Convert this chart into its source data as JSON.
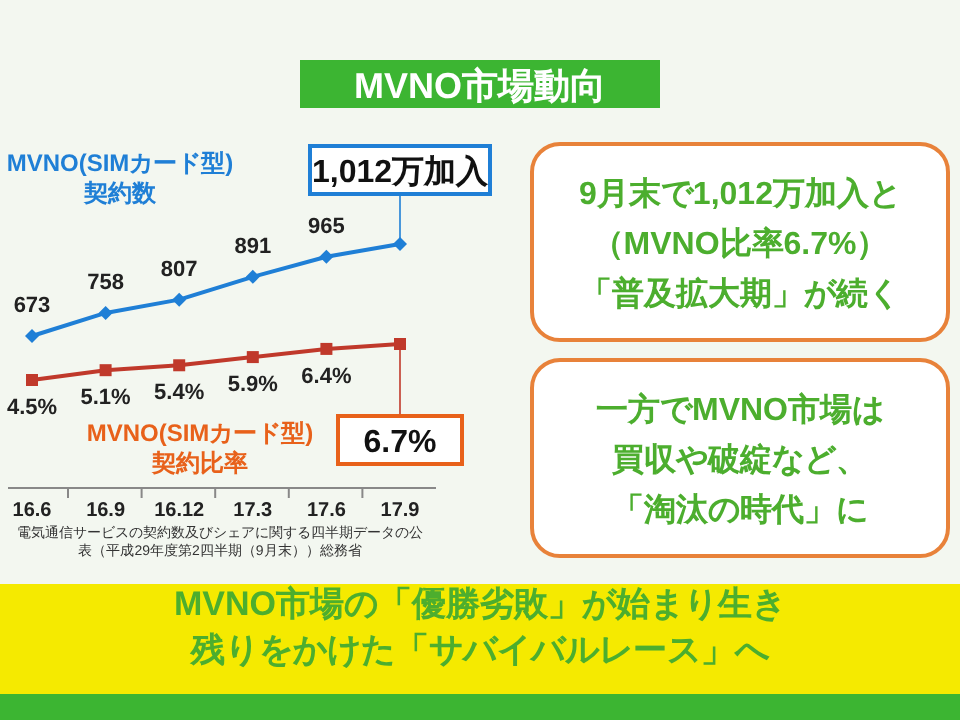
{
  "chart_data": [
    {
      "type": "line",
      "title": "MVNO市場動向",
      "categories": [
        "16.6",
        "16.9",
        "16.12",
        "17.3",
        "17.6",
        "17.9"
      ],
      "tick_labels": false,
      "legend": "top left",
      "marker": "diamond",
      "series": [
        {
          "name": "MVNO(SIMカード型)契約数",
          "color": "#1f7fd6",
          "values": [
            673,
            758,
            807,
            891,
            965,
            1012
          ],
          "value_labels": [
            "673",
            "758",
            "807",
            "891",
            "965",
            "1,012万加入"
          ]
        }
      ]
    },
    {
      "type": "line",
      "categories": [
        "16.6",
        "16.9",
        "16.12",
        "17.3",
        "17.6",
        "17.9"
      ],
      "legend": "bottom left",
      "marker": "square",
      "series": [
        {
          "name": "MVNO(SIMカード型)契約比率",
          "color": "#c0392b",
          "values": [
            4.5,
            5.1,
            5.4,
            5.9,
            6.4,
            6.7
          ],
          "value_labels": [
            "4.5%",
            "5.1%",
            "5.4%",
            "5.9%",
            "6.4%",
            "6.7%"
          ]
        }
      ],
      "annotations": [
        "電気通信サービスの契約数及びシェアに関する四半期データの公表（平成29年度第2四半期（9月末））総務省",
        "MVNO市場の「優勝劣敗」が始まり生き残りをかけた「サバイバルレース」へ"
      ]
    },
    {
      "type": "other",
      "annotations": [
        "9月末で1,012万加入と（MVNO比率6.7%）「普及拡大期」が続く",
        "一方でMVNO市場は買収や破綻など、「淘汰の時代」に"
      ]
    }
  ]
}
